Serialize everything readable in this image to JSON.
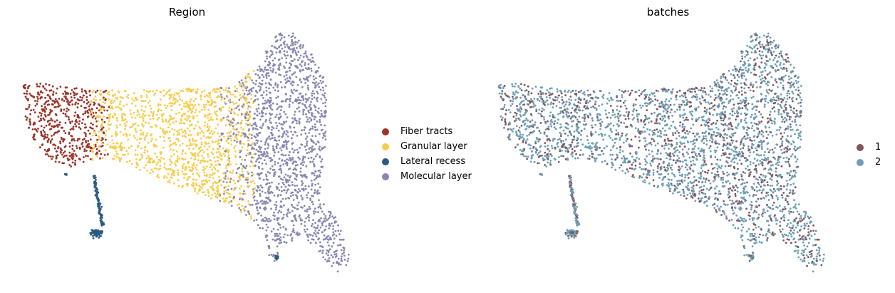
{
  "chart_data": [
    {
      "type": "scatter",
      "title": "Region",
      "xlabel": "",
      "ylabel": "",
      "grid": false,
      "axes_visible": false,
      "legend_placement": "right",
      "series": [
        {
          "name": "Fiber tracts",
          "color": "#9b3328"
        },
        {
          "name": "Granular layer",
          "color": "#f8cc4a"
        },
        {
          "name": "Lateral recess",
          "color": "#2c5a80"
        },
        {
          "name": "Molecular layer",
          "color": "#8787b3"
        }
      ]
    },
    {
      "type": "scatter",
      "title": "batches",
      "xlabel": "",
      "ylabel": "",
      "grid": false,
      "axes_visible": false,
      "legend_placement": "right",
      "series": [
        {
          "name": "1",
          "color": "#82555f"
        },
        {
          "name": "2",
          "color": "#6e9fb6"
        }
      ]
    }
  ]
}
